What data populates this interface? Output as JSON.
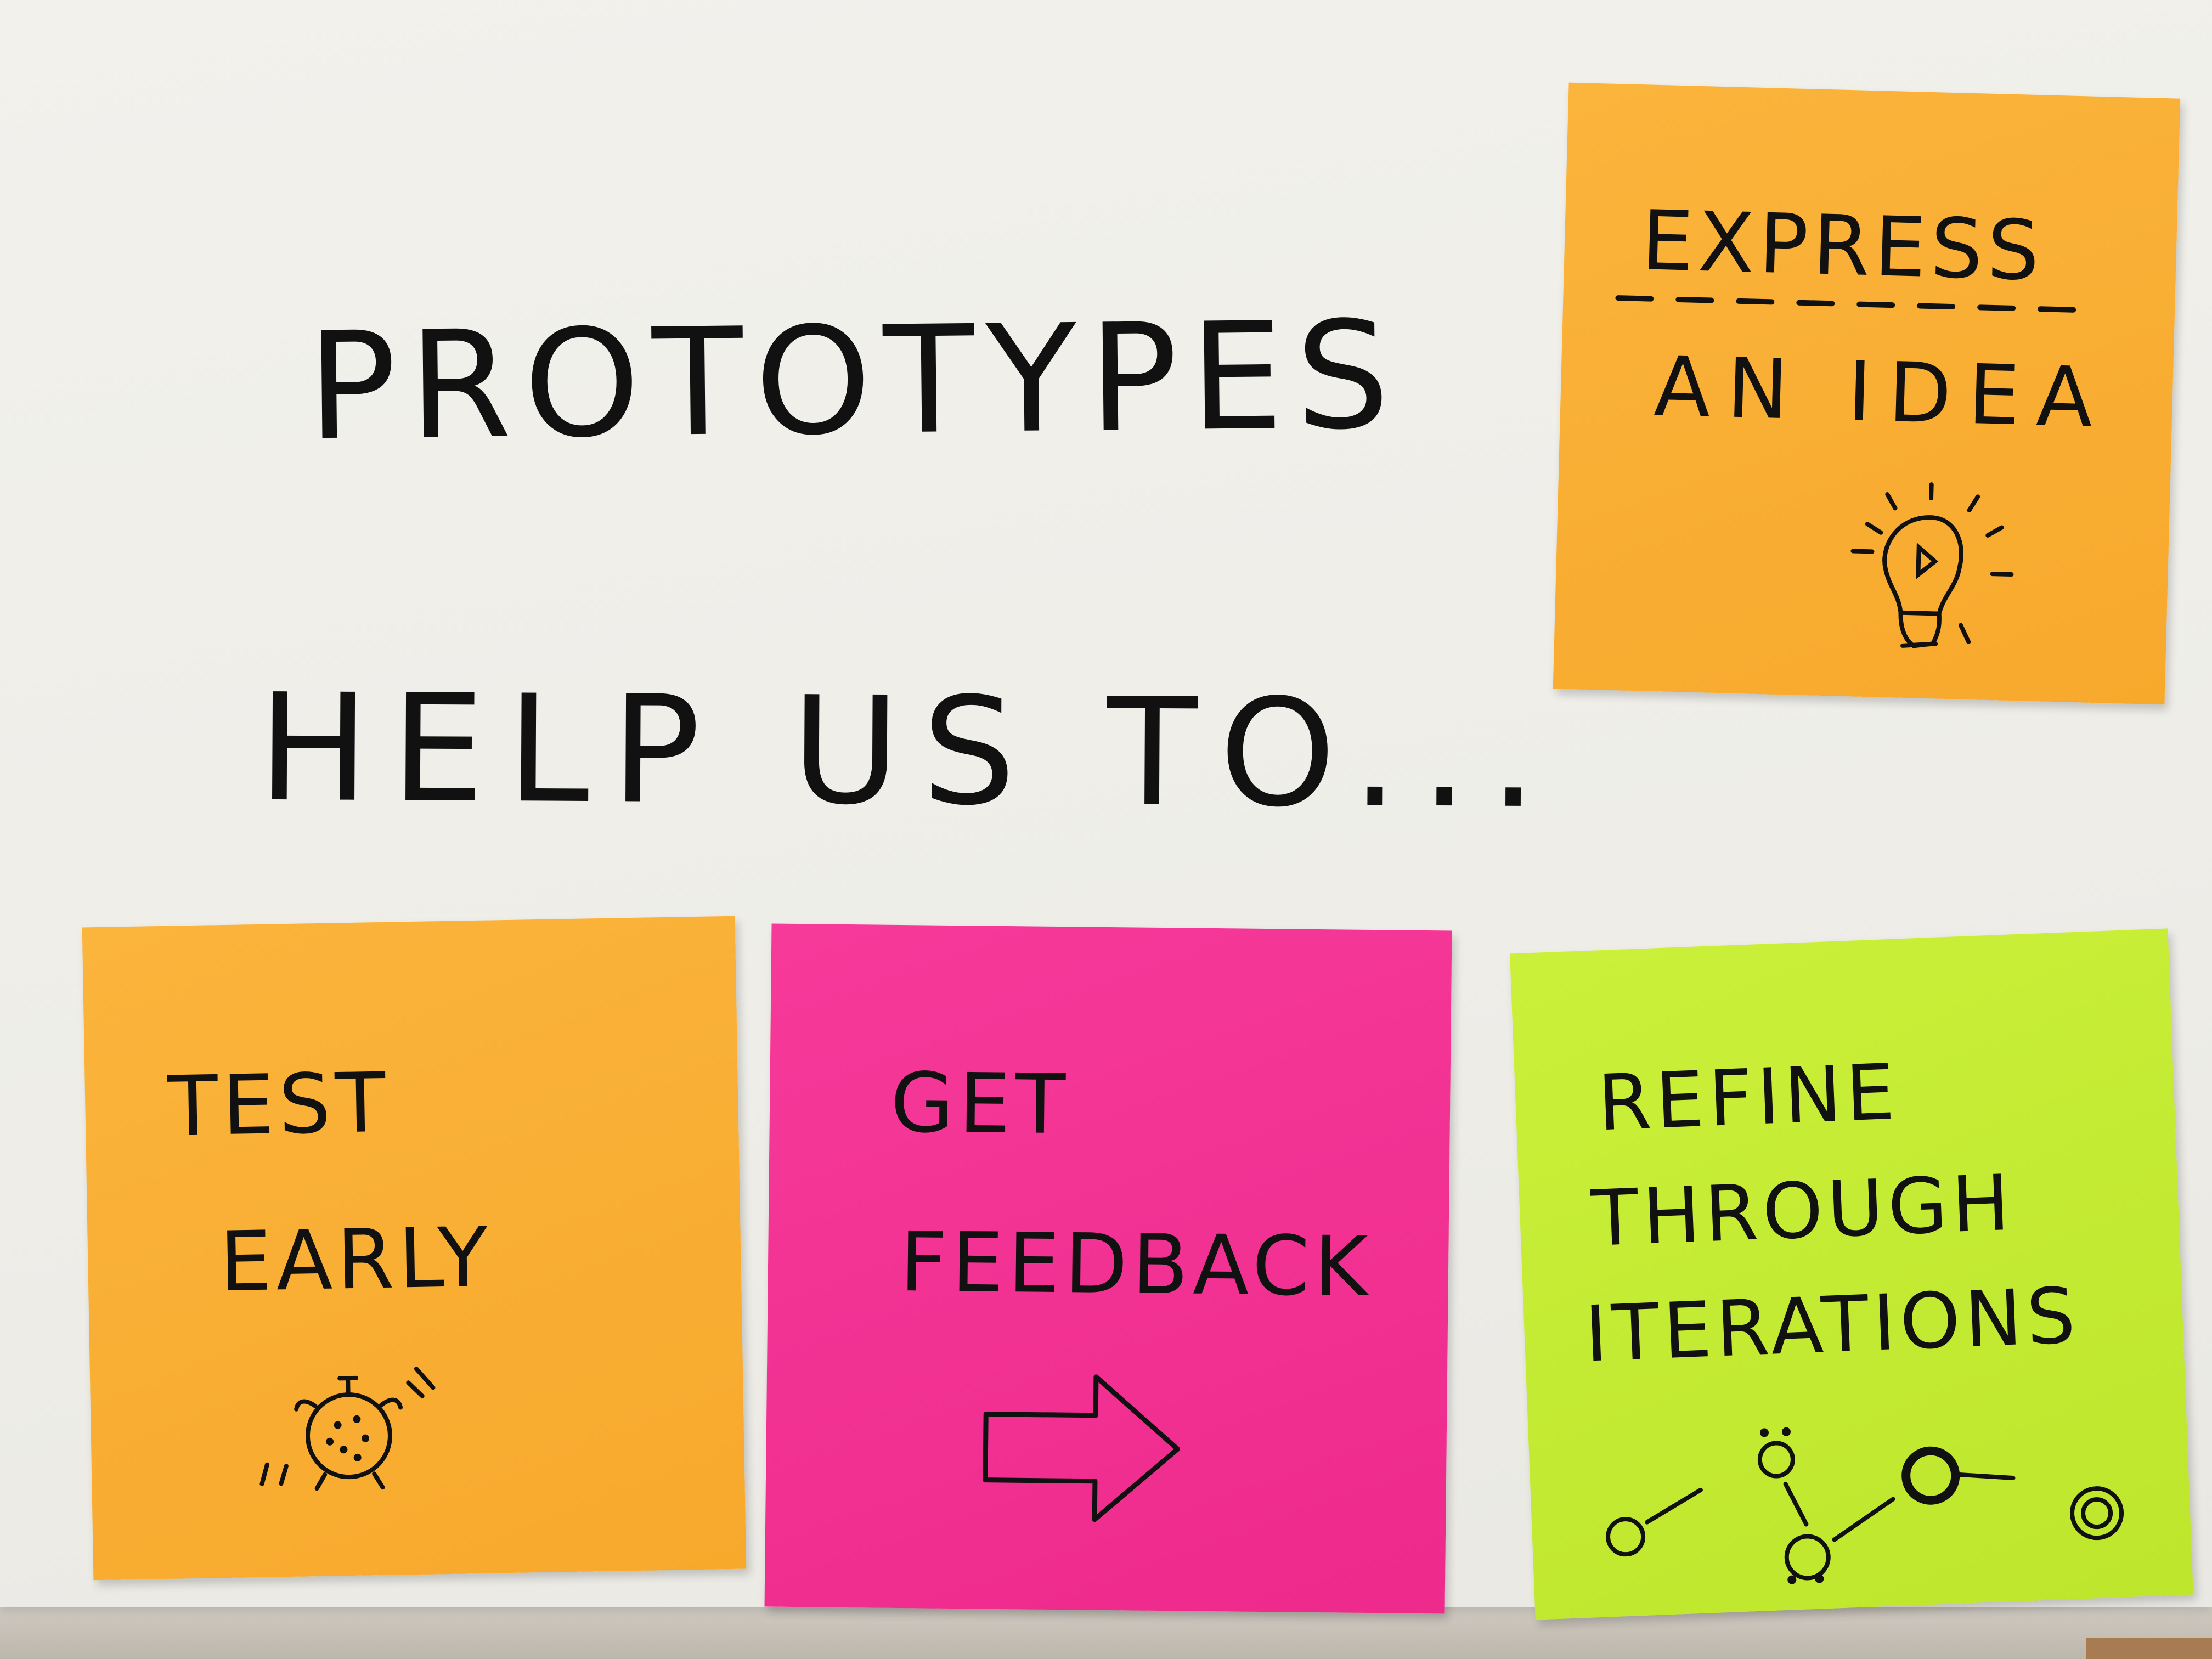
{
  "headline": {
    "line1": "PROTOTYPES",
    "line2": "HELP US TO..."
  },
  "notes": [
    {
      "color": "#f7a92c",
      "lines": [
        "EXPRESS",
        "AN IDEA"
      ],
      "icon": "lightbulb-icon"
    },
    {
      "color": "#f7a92c",
      "lines": [
        "TEST",
        "EARLY"
      ],
      "icon": "alarm-clock-icon"
    },
    {
      "color": "#ee2a8c",
      "lines": [
        "GET",
        "FEEDBACK"
      ],
      "icon": "arrow-right-icon"
    },
    {
      "color": "#bde62c",
      "lines": [
        "REFINE",
        "THROUGH",
        "ITERATIONS"
      ],
      "icon": "iteration-path-icon"
    }
  ]
}
